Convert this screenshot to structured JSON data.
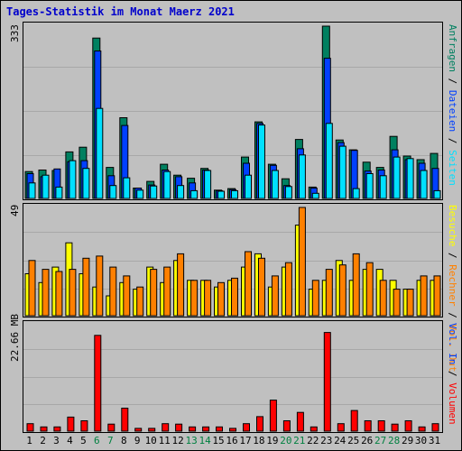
{
  "title": "Tages-Statistik im Monat Maerz 2021",
  "colors": {
    "background": "#c0c0c0",
    "title": "#0000cc",
    "anfragen": "#008060",
    "dateien": "#0040ff",
    "seiten": "#00e0ff",
    "besuche": "#ffff00",
    "rechner": "#ff8000",
    "volumen": "#ff0000",
    "weekend_label": "#008040"
  },
  "right_labels": {
    "top": [
      "Anfragen",
      "Dateien",
      "Seiten"
    ],
    "top_seps": [
      " / ",
      " / "
    ],
    "middle": [
      "Besuche",
      "Rechner",
      "Vol. Out"
    ],
    "middle_seps": [
      " / ",
      " / "
    ],
    "bottom": [
      "Vol. In",
      "Volumen"
    ],
    "bottom_seps": [
      " / "
    ]
  },
  "chart_data": [
    {
      "type": "bar",
      "panel": "requests",
      "ylabel": "333",
      "ylim": [
        0,
        333
      ],
      "categories": [
        "1",
        "2",
        "3",
        "4",
        "5",
        "6",
        "7",
        "8",
        "9",
        "10",
        "11",
        "12",
        "13",
        "14",
        "15",
        "16",
        "17",
        "18",
        "19",
        "20",
        "21",
        "22",
        "23",
        "24",
        "25",
        "26",
        "27",
        "28",
        "29",
        "30",
        "31"
      ],
      "weekend_days": [
        "6",
        "7",
        "13",
        "14",
        "20",
        "21",
        "27",
        "28"
      ],
      "series": [
        {
          "name": "Anfragen",
          "values": [
            52,
            55,
            54,
            90,
            99,
            310,
            60,
            156,
            20,
            33,
            66,
            45,
            39,
            58,
            16,
            19,
            80,
            148,
            66,
            38,
            114,
            22,
            333,
            113,
            94,
            70,
            60,
            120,
            82,
            75,
            87
          ]
        },
        {
          "name": "Dateien",
          "values": [
            48,
            42,
            57,
            71,
            73,
            285,
            44,
            141,
            20,
            26,
            55,
            42,
            30,
            55,
            15,
            17,
            68,
            145,
            64,
            25,
            96,
            20,
            271,
            108,
            93,
            53,
            55,
            94,
            75,
            68,
            58
          ]
        },
        {
          "name": "Seiten",
          "values": [
            30,
            45,
            22,
            73,
            58,
            174,
            25,
            40,
            16,
            24,
            52,
            25,
            15,
            54,
            14,
            15,
            45,
            142,
            54,
            23,
            84,
            10,
            145,
            101,
            19,
            48,
            44,
            80,
            77,
            54,
            15
          ]
        }
      ]
    },
    {
      "type": "bar",
      "panel": "visits",
      "ylabel": "49",
      "ylim": [
        0,
        49
      ],
      "series": [
        {
          "name": "Besuche",
          "values": [
            19,
            15,
            22,
            33,
            19,
            13,
            9,
            15,
            12,
            22,
            15,
            25,
            16,
            16,
            13,
            16,
            22,
            28,
            13,
            22,
            41,
            12,
            16,
            25,
            16,
            21,
            21,
            16,
            12,
            16,
            16
          ]
        },
        {
          "name": "Rechner",
          "values": [
            25,
            21,
            20,
            21,
            26,
            27,
            22,
            18,
            13,
            21,
            22,
            28,
            16,
            16,
            15,
            17,
            29,
            26,
            18,
            24,
            49,
            16,
            21,
            23,
            28,
            24,
            16,
            12,
            12,
            18,
            18
          ]
        }
      ]
    },
    {
      "type": "bar",
      "panel": "volume",
      "ylabel": "22.66 MB",
      "ylim": [
        0,
        22.66
      ],
      "series": [
        {
          "name": "Volumen",
          "values": [
            1.6,
            0.9,
            0.9,
            3.0,
            2.2,
            20.4,
            1.5,
            4.9,
            0.6,
            0.6,
            1.6,
            1.5,
            0.9,
            0.9,
            0.9,
            0.6,
            1.6,
            3.1,
            6.6,
            2.2,
            4.0,
            0.9,
            21.0,
            1.6,
            4.4,
            2.2,
            2.2,
            1.5,
            2.2,
            0.9,
            1.6
          ]
        }
      ]
    }
  ]
}
